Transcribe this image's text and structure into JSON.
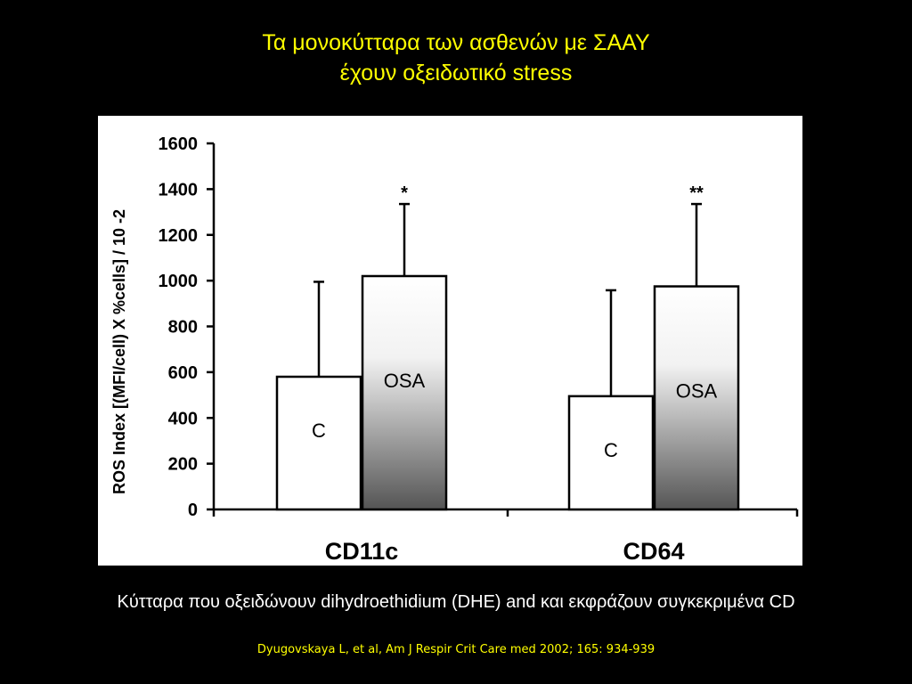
{
  "slide": {
    "title_line1": "Τα μονοκύτταρα των ασθενών με ΣΑΑΥ",
    "title_line2": "έχουν οξειδωτικό stress",
    "caption": "Κύτταρα που οξειδώνουν dihydroethidium (DHE) and και εκφράζουν συγκεκριμένα CD",
    "citation": "Dyugovskaya L, et al, Am J Respir Crit Care med 2002; 165: 934-939",
    "title_color": "#ffff00",
    "background_color": "#000000"
  },
  "chart_data": {
    "type": "bar",
    "ylabel": "ROS Index [(MFI/cell) X %cells] / 10 -2",
    "ylim": [
      0,
      1600
    ],
    "yticks": [
      0,
      200,
      400,
      600,
      800,
      1000,
      1200,
      1400,
      1600
    ],
    "categories": [
      "CD11c",
      "CD64"
    ],
    "series": [
      {
        "name": "C",
        "values": [
          580,
          495
        ],
        "error_upper": [
          995,
          958
        ],
        "fill": "white"
      },
      {
        "name": "OSA",
        "values": [
          1020,
          975
        ],
        "error_upper": [
          1335,
          1335
        ],
        "fill": "gradient-gray"
      }
    ],
    "significance": [
      "*",
      "**"
    ],
    "grid": false
  }
}
